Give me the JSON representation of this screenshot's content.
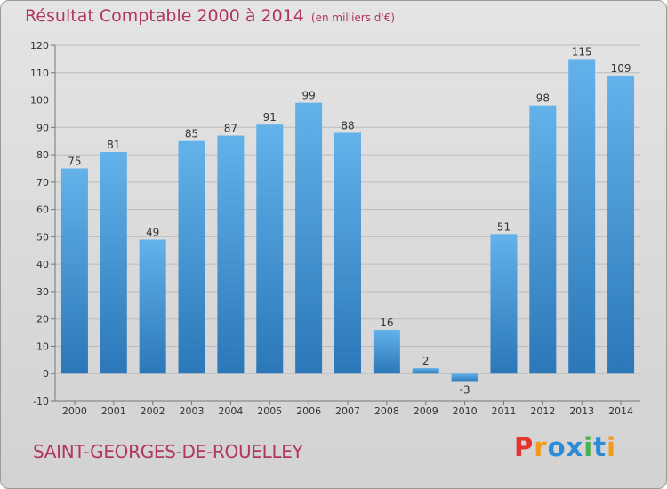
{
  "title": "Résultat Comptable 2000 à 2014",
  "subtitle": "(en milliers d'€)",
  "commune": "SAINT-GEORGES-DE-ROUELLEY",
  "logo": {
    "text": "Proxiti",
    "colors": [
      "#e3342f",
      "#f39a1b",
      "#2c8bd6",
      "#2c8bd6",
      "#4caf50",
      "#2c8bd6",
      "#f39a1b"
    ]
  },
  "colors": {
    "title": "#b2365f",
    "bar_light": "#63b2ea",
    "bar_dark": "#2b77b8",
    "grid": "#bcbcbc",
    "background": "#dadada"
  },
  "chart_data": {
    "type": "bar",
    "title": "Résultat Comptable 2000 à 2014",
    "subtitle": "(en milliers d'€)",
    "categories": [
      "2000",
      "2001",
      "2002",
      "2003",
      "2004",
      "2005",
      "2006",
      "2007",
      "2008",
      "2009",
      "2010",
      "2011",
      "2012",
      "2013",
      "2014"
    ],
    "values": [
      75,
      81,
      49,
      85,
      87,
      91,
      99,
      88,
      16,
      2,
      -3,
      51,
      98,
      115,
      109
    ],
    "ylim": [
      -10,
      120
    ],
    "yticks": [
      -10,
      0,
      10,
      20,
      30,
      40,
      50,
      60,
      70,
      80,
      90,
      100,
      110,
      120
    ],
    "grid": true,
    "data_labels": true
  }
}
